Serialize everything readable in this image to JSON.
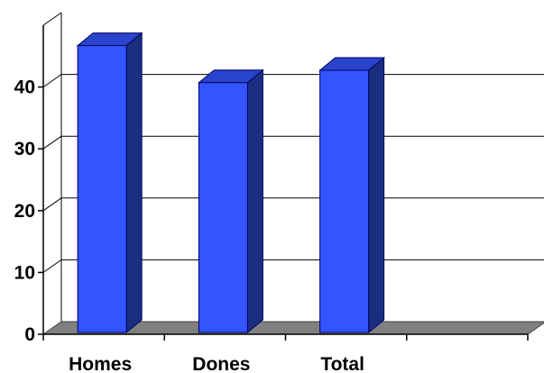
{
  "chart_data": {
    "type": "bar",
    "title": "",
    "xlabel": "",
    "ylabel": "",
    "categories": [
      "Homes",
      "Dones",
      "Total"
    ],
    "values": [
      47,
      41,
      43
    ],
    "ylim": [
      0,
      50
    ],
    "yticks": [
      "0",
      "10",
      "20",
      "30",
      "40"
    ],
    "grid": true,
    "style": "3d",
    "colors": {
      "bar_front": "#3355ff",
      "bar_side": "#1a2f80",
      "bar_top": "#2a44cc",
      "bar_edge": "#000066",
      "floor": "#808080",
      "grid": "#000000"
    }
  }
}
